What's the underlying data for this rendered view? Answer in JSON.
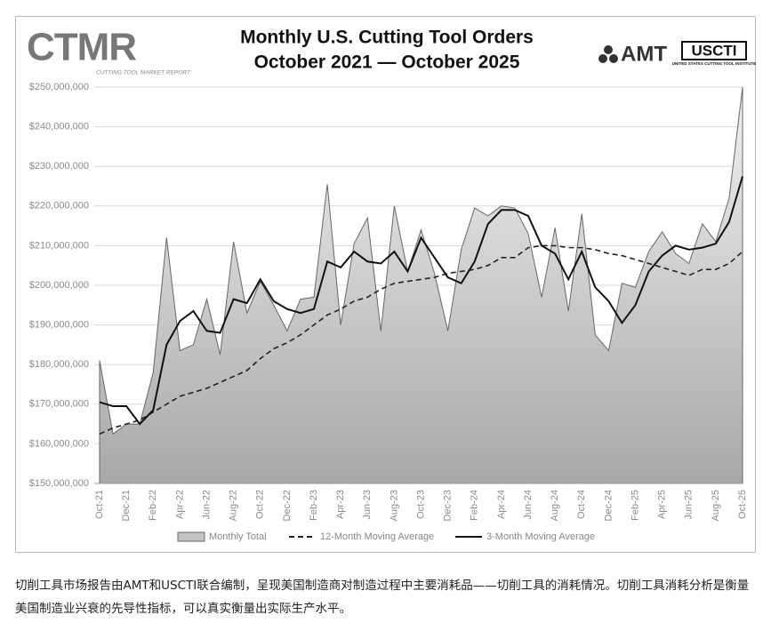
{
  "chart_data": {
    "type": "area-line",
    "title": "Monthly U.S. Cutting Tool Orders",
    "subtitle": "October 2021 — October 2025",
    "categories": [
      "Oct-21",
      null,
      "Dec-21",
      null,
      "Feb-22",
      null,
      "Apr-22",
      null,
      "Jun-22",
      null,
      "Aug-22",
      null,
      "Oct-22",
      null,
      "Dec-22",
      null,
      "Feb-23",
      null,
      "Apr-23",
      null,
      "Jun-23",
      null,
      "Aug-23",
      null,
      "Oct-23",
      null,
      "Dec-23",
      null,
      "Feb-24",
      null,
      "Apr-24",
      null,
      "Jun-24",
      null,
      "Aug-24",
      null,
      "Oct-24",
      null,
      "Dec-24",
      null,
      "Feb-25",
      null,
      "Apr-25",
      null,
      "Jun-25",
      null,
      "Aug-25",
      null,
      "Oct-25"
    ],
    "series": [
      {
        "name": "Monthly Total",
        "color": "#c4c4c4",
        "kind": "area",
        "values": [
          181000000,
          162500000,
          165000000,
          165000000,
          178000000,
          212000000,
          183500000,
          185000000,
          196500000,
          182500000,
          211000000,
          193000000,
          201000000,
          195000000,
          188500000,
          196500000,
          197000000,
          225500000,
          190000000,
          210500000,
          217000000,
          188500000,
          220000000,
          203500000,
          214000000,
          203000000,
          188500000,
          209000000,
          219500000,
          217500000,
          220000000,
          219500000,
          213000000,
          197000000,
          214500000,
          193500000,
          218000000,
          187500000,
          183500000,
          200500000,
          199500000,
          208500000,
          213500000,
          208000000,
          205500000,
          215500000,
          211000000,
          222000000,
          250000000
        ]
      },
      {
        "name": "12-Month Moving Average",
        "color": "#222222",
        "kind": "dashed",
        "values": [
          162500000,
          164000000,
          165000000,
          166000000,
          168000000,
          170000000,
          172000000,
          173000000,
          174000000,
          175500000,
          177000000,
          178500000,
          181500000,
          184000000,
          185500000,
          187500000,
          190000000,
          192500000,
          194000000,
          196000000,
          197000000,
          199000000,
          200500000,
          201000000,
          201500000,
          202000000,
          203000000,
          203500000,
          204000000,
          205000000,
          207000000,
          207000000,
          209500000,
          210000000,
          210000000,
          209500000,
          209500000,
          209000000,
          208000000,
          207500000,
          206500000,
          205500000,
          204500000,
          203500000,
          202500000,
          204000000,
          204000000,
          205500000,
          208500000
        ]
      },
      {
        "name": "3-Month Moving Average",
        "color": "#111111",
        "kind": "line",
        "values": [
          170500000,
          169500000,
          169500000,
          165000000,
          168500000,
          185000000,
          191000000,
          193500000,
          188500000,
          188000000,
          196500000,
          195500000,
          201500000,
          196000000,
          194000000,
          193000000,
          194000000,
          206000000,
          204500000,
          208500000,
          206000000,
          205500000,
          208500000,
          203500000,
          212000000,
          207000000,
          202000000,
          200500000,
          206000000,
          215500000,
          219000000,
          219000000,
          217500000,
          210000000,
          208000000,
          201500000,
          208500000,
          199500000,
          196000000,
          190500000,
          195000000,
          203500000,
          207500000,
          210000000,
          209000000,
          209500000,
          210500000,
          216000000,
          227500000
        ]
      }
    ],
    "ylim": [
      150000000,
      250000000
    ],
    "yticks": [
      {
        "value": 150000000,
        "label": "$150,000,000"
      },
      {
        "value": 160000000,
        "label": "$160,000,000"
      },
      {
        "value": 170000000,
        "label": "$170,000,000"
      },
      {
        "value": 180000000,
        "label": "$180,000,000"
      },
      {
        "value": 190000000,
        "label": "$190,000,000"
      },
      {
        "value": 200000000,
        "label": "$200,000,000"
      },
      {
        "value": 210000000,
        "label": "$210,000,000"
      },
      {
        "value": 220000000,
        "label": "$220,000,000"
      },
      {
        "value": 230000000,
        "label": "$230,000,000"
      },
      {
        "value": 240000000,
        "label": "$240,000,000"
      },
      {
        "value": 250000000,
        "label": "$250,000,000"
      }
    ],
    "grid": true,
    "legend": "bottom"
  },
  "logos": {
    "left": "CTMR",
    "left_sub": "CUTTING TOOL MARKET REPORT",
    "right": "AMT",
    "right_box": "USCTI",
    "right_sub": "UNITED STATES CUTTING TOOL INSTITUTE"
  },
  "caption": "切削工具市场报告由AMT和USCTI联合编制，呈现美国制造商对制造过程中主要消耗品——切削工具的消耗情况。切削工具消耗分析是衡量美国制造业兴衰的先导性指标，可以真实衡量出实际生产水平。"
}
